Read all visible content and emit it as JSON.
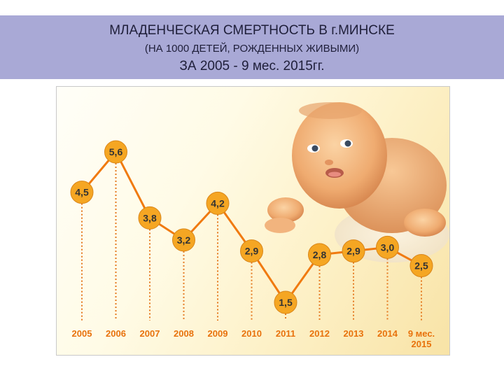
{
  "header": {
    "title": "МЛАДЕНЧЕСКАЯ СМЕРТНОСТЬ В г.МИНСКЕ",
    "subtitle": "(НА 1000 ДЕТЕЙ, РОЖДЕННЫХ ЖИВЫМИ)",
    "period": "ЗА 2005 - 9 мес. 2015гг."
  },
  "colors": {
    "header_bg": "#a9a9d6",
    "line": "#f07a10",
    "badge": "#f5a623",
    "badge_text": "#333333",
    "axis_text": "#e8720c",
    "dots": "#e57a20"
  },
  "chart_data": {
    "type": "line",
    "title": "",
    "xlabel": "",
    "ylabel": "",
    "categories": [
      "2005",
      "2006",
      "2007",
      "2008",
      "2009",
      "2010",
      "2011",
      "2012",
      "2013",
      "2014",
      "9 мес. 2015"
    ],
    "category_lines": [
      [
        "2005"
      ],
      [
        "2006"
      ],
      [
        "2007"
      ],
      [
        "2008"
      ],
      [
        "2009"
      ],
      [
        "2010"
      ],
      [
        "2011"
      ],
      [
        "2012"
      ],
      [
        "2013"
      ],
      [
        "2014"
      ],
      [
        "9 мес.",
        "2015"
      ]
    ],
    "values": [
      4.5,
      5.6,
      3.8,
      3.2,
      4.2,
      2.9,
      1.5,
      2.8,
      2.9,
      3.0,
      2.5
    ],
    "labels": [
      "4,5",
      "5,6",
      "3,8",
      "3,2",
      "4,2",
      "2,9",
      "1,5",
      "2,8",
      "2,9",
      "3,0",
      "2,5"
    ],
    "ylim": [
      1.5,
      5.6
    ],
    "grid": false,
    "legend": "none",
    "decoration": "baby photo (upper right)"
  }
}
